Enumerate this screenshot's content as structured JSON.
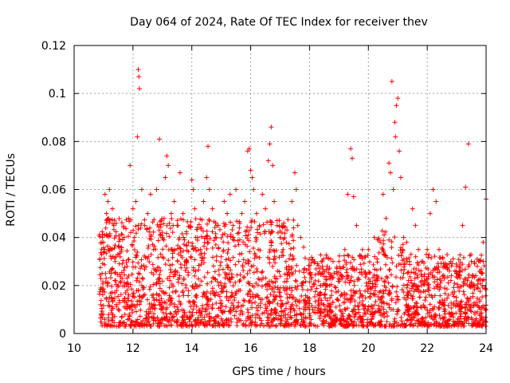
{
  "chart_data": {
    "type": "scatter",
    "title": "Day 064 of 2024, Rate Of TEC Index for receiver thev",
    "xlabel": "GPS time / hours",
    "ylabel": "ROTI / TECUs",
    "xlim": [
      10,
      24
    ],
    "ylim": [
      0,
      0.12
    ],
    "x_ticks": [
      10,
      12,
      14,
      16,
      18,
      20,
      22,
      24
    ],
    "x_tick_labels": [
      "10",
      "12",
      "14",
      "16",
      "18",
      "20",
      "22",
      "24"
    ],
    "y_ticks": [
      0,
      0.02,
      0.04,
      0.06,
      0.08,
      0.1,
      0.12
    ],
    "y_tick_labels": [
      "0",
      "0.02",
      "0.04",
      "0.06",
      "0.08",
      "0.1",
      "0.12"
    ],
    "grid": true,
    "marker": "+",
    "marker_color": "#ff0000",
    "series": [
      {
        "name": "ROTI",
        "points": [
          [
            10.9,
            0.012
          ],
          [
            10.95,
            0.025
          ],
          [
            11.0,
            0.038
          ],
          [
            11.05,
            0.058
          ],
          [
            11.1,
            0.05
          ],
          [
            11.15,
            0.055
          ],
          [
            11.2,
            0.06
          ],
          [
            11.3,
            0.052
          ],
          [
            11.35,
            0.045
          ],
          [
            11.4,
            0.03
          ],
          [
            11.5,
            0.02
          ],
          [
            11.6,
            0.036
          ],
          [
            11.7,
            0.04
          ],
          [
            11.8,
            0.028
          ],
          [
            11.85,
            0.048
          ],
          [
            11.9,
            0.07
          ],
          [
            12.0,
            0.052
          ],
          [
            12.05,
            0.04
          ],
          [
            12.1,
            0.055
          ],
          [
            12.15,
            0.082
          ],
          [
            12.18,
            0.11
          ],
          [
            12.2,
            0.107
          ],
          [
            12.22,
            0.102
          ],
          [
            12.3,
            0.06
          ],
          [
            12.4,
            0.045
          ],
          [
            12.5,
            0.05
          ],
          [
            12.6,
            0.058
          ],
          [
            12.7,
            0.035
          ],
          [
            12.8,
            0.06
          ],
          [
            12.9,
            0.081
          ],
          [
            13.0,
            0.04
          ],
          [
            13.1,
            0.065
          ],
          [
            13.15,
            0.074
          ],
          [
            13.2,
            0.07
          ],
          [
            13.3,
            0.05
          ],
          [
            13.4,
            0.055
          ],
          [
            13.5,
            0.045
          ],
          [
            13.6,
            0.067
          ],
          [
            13.7,
            0.05
          ],
          [
            13.8,
            0.03
          ],
          [
            14.0,
            0.064
          ],
          [
            14.05,
            0.06
          ],
          [
            14.1,
            0.052
          ],
          [
            14.2,
            0.04
          ],
          [
            14.3,
            0.035
          ],
          [
            14.4,
            0.055
          ],
          [
            14.5,
            0.065
          ],
          [
            14.55,
            0.078
          ],
          [
            14.6,
            0.06
          ],
          [
            14.7,
            0.052
          ],
          [
            14.8,
            0.04
          ],
          [
            14.9,
            0.045
          ],
          [
            15.0,
            0.032
          ],
          [
            15.1,
            0.055
          ],
          [
            15.2,
            0.05
          ],
          [
            15.3,
            0.058
          ],
          [
            15.4,
            0.045
          ],
          [
            15.5,
            0.06
          ],
          [
            15.6,
            0.042
          ],
          [
            15.7,
            0.05
          ],
          [
            15.8,
            0.055
          ],
          [
            15.9,
            0.076
          ],
          [
            15.95,
            0.077
          ],
          [
            16.0,
            0.068
          ],
          [
            16.05,
            0.065
          ],
          [
            16.1,
            0.06
          ],
          [
            16.2,
            0.05
          ],
          [
            16.3,
            0.045
          ],
          [
            16.4,
            0.058
          ],
          [
            16.5,
            0.052
          ],
          [
            16.6,
            0.072
          ],
          [
            16.65,
            0.079
          ],
          [
            16.7,
            0.086
          ],
          [
            16.75,
            0.07
          ],
          [
            16.8,
            0.055
          ],
          [
            16.9,
            0.045
          ],
          [
            17.0,
            0.04
          ],
          [
            17.1,
            0.035
          ],
          [
            17.2,
            0.03
          ],
          [
            17.3,
            0.028
          ],
          [
            17.4,
            0.055
          ],
          [
            17.5,
            0.067
          ],
          [
            17.55,
            0.06
          ],
          [
            17.6,
            0.045
          ],
          [
            17.7,
            0.04
          ],
          [
            17.8,
            0.036
          ],
          [
            18.0,
            0.025
          ],
          [
            18.2,
            0.022
          ],
          [
            18.4,
            0.03
          ],
          [
            18.6,
            0.028
          ],
          [
            18.8,
            0.03
          ],
          [
            19.0,
            0.03
          ],
          [
            19.2,
            0.035
          ],
          [
            19.3,
            0.058
          ],
          [
            19.4,
            0.077
          ],
          [
            19.45,
            0.073
          ],
          [
            19.5,
            0.057
          ],
          [
            19.6,
            0.045
          ],
          [
            19.8,
            0.035
          ],
          [
            20.0,
            0.035
          ],
          [
            20.2,
            0.04
          ],
          [
            20.4,
            0.038
          ],
          [
            20.5,
            0.058
          ],
          [
            20.6,
            0.048
          ],
          [
            20.7,
            0.071
          ],
          [
            20.75,
            0.067
          ],
          [
            20.8,
            0.105
          ],
          [
            20.85,
            0.06
          ],
          [
            20.9,
            0.088
          ],
          [
            20.92,
            0.082
          ],
          [
            20.95,
            0.095
          ],
          [
            21.0,
            0.098
          ],
          [
            21.05,
            0.076
          ],
          [
            21.1,
            0.065
          ],
          [
            21.2,
            0.04
          ],
          [
            21.3,
            0.038
          ],
          [
            21.4,
            0.03
          ],
          [
            21.5,
            0.052
          ],
          [
            21.6,
            0.045
          ],
          [
            21.7,
            0.035
          ],
          [
            21.8,
            0.03
          ],
          [
            22.0,
            0.035
          ],
          [
            22.1,
            0.05
          ],
          [
            22.2,
            0.06
          ],
          [
            22.3,
            0.055
          ],
          [
            22.4,
            0.035
          ],
          [
            22.6,
            0.028
          ],
          [
            22.8,
            0.03
          ],
          [
            23.0,
            0.025
          ],
          [
            23.2,
            0.045
          ],
          [
            23.3,
            0.061
          ],
          [
            23.4,
            0.079
          ],
          [
            23.5,
            0.03
          ],
          [
            23.7,
            0.028
          ],
          [
            23.8,
            0.03
          ],
          [
            23.9,
            0.038
          ],
          [
            24.0,
            0.056
          ],
          [
            11.0,
            0.008
          ],
          [
            11.2,
            0.015
          ],
          [
            11.5,
            0.01
          ],
          [
            11.8,
            0.018
          ],
          [
            12.0,
            0.012
          ],
          [
            12.3,
            0.02
          ],
          [
            12.6,
            0.009
          ],
          [
            12.9,
            0.016
          ],
          [
            13.2,
            0.014
          ],
          [
            13.5,
            0.011
          ],
          [
            13.8,
            0.019
          ],
          [
            14.1,
            0.013
          ],
          [
            14.4,
            0.017
          ],
          [
            14.7,
            0.012
          ],
          [
            15.0,
            0.02
          ],
          [
            15.3,
            0.015
          ],
          [
            15.6,
            0.018
          ],
          [
            15.9,
            0.01
          ],
          [
            16.2,
            0.016
          ],
          [
            16.5,
            0.012
          ],
          [
            16.8,
            0.014
          ],
          [
            17.1,
            0.009
          ],
          [
            17.4,
            0.012
          ],
          [
            17.7,
            0.008
          ],
          [
            18.0,
            0.01
          ],
          [
            18.3,
            0.012
          ],
          [
            18.6,
            0.009
          ],
          [
            18.9,
            0.011
          ],
          [
            19.2,
            0.013
          ],
          [
            19.5,
            0.01
          ],
          [
            19.8,
            0.012
          ],
          [
            20.1,
            0.011
          ],
          [
            20.4,
            0.014
          ],
          [
            20.7,
            0.012
          ],
          [
            21.0,
            0.01
          ],
          [
            21.3,
            0.012
          ],
          [
            21.6,
            0.009
          ],
          [
            21.9,
            0.011
          ],
          [
            22.2,
            0.01
          ],
          [
            22.5,
            0.012
          ],
          [
            22.8,
            0.008
          ],
          [
            23.1,
            0.01
          ],
          [
            23.4,
            0.012
          ],
          [
            23.7,
            0.009
          ],
          [
            24.0,
            0.01
          ]
        ]
      }
    ]
  }
}
